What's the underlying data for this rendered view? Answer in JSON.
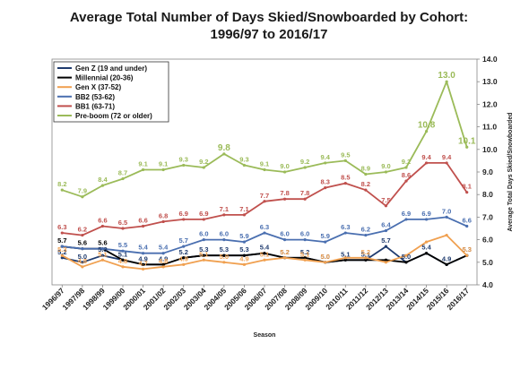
{
  "chart_data": {
    "type": "line",
    "title_lines": [
      "Average Total Number of Days Skied/Snowboarded by Cohort:",
      "1996/97 to 2016/17"
    ],
    "xlabel": "Season",
    "ylabel": "Average Total Days Skied/Snowboarded",
    "ylim": [
      4.0,
      14.0
    ],
    "yticks": [
      "4.0",
      "5.0",
      "6.0",
      "7.0",
      "8.0",
      "9.0",
      "10.0",
      "11.0",
      "12.0",
      "13.0",
      "14.0"
    ],
    "legend_position": "top-left",
    "categories": [
      "1996/97",
      "1997/98",
      "1998/99",
      "1999/00",
      "2000/01",
      "2001/02",
      "2002/03",
      "2003/04",
      "2004/05",
      "2005/06",
      "2006/07",
      "2007/08",
      "2008/09",
      "2009/10",
      "2010/11",
      "2011/12",
      "2012/13",
      "2013/14",
      "2014/15",
      "2015/16",
      "2016/17"
    ],
    "series": [
      {
        "name": "Gen Z (19 and under)",
        "color": "#1f3b6e",
        "values": [
          5.2,
          5.0,
          5.3,
          5.1,
          4.9,
          4.9,
          5.2,
          5.3,
          5.3,
          5.3,
          5.4,
          5.2,
          5.2,
          5.0,
          5.1,
          5.1,
          5.7,
          5.0,
          5.4,
          4.9,
          5.3
        ],
        "labels": [
          "5.2",
          "5.0",
          "5.3",
          "5.1",
          "4.9",
          "4.9",
          "5.2",
          "5.3",
          "5.3",
          "5.3",
          "5.4",
          "5.2",
          "5.2",
          "5.0",
          "5.1",
          "5.1",
          "5.7",
          "5.0",
          "5.4",
          "4.9",
          "5.3"
        ]
      },
      {
        "name": "Millennial (20-36)",
        "color": "#000000",
        "values": [
          5.7,
          5.6,
          5.6,
          5.1,
          4.9,
          4.9,
          5.2,
          5.3,
          5.3,
          5.3,
          5.4,
          5.2,
          5.2,
          5.0,
          5.1,
          5.1,
          5.1,
          5.0,
          5.4,
          4.9,
          5.3
        ],
        "labels": [
          "5.7",
          "5.6",
          "5.6",
          "",
          "",
          "",
          "",
          "",
          "",
          "",
          "",
          "",
          "",
          "",
          "",
          "",
          "",
          "",
          "",
          "",
          ""
        ]
      },
      {
        "name": "Gen X (37-52)",
        "color": "#f0a050",
        "values": [
          5.3,
          4.8,
          5.1,
          4.8,
          4.7,
          4.8,
          4.9,
          5.1,
          5.0,
          4.9,
          5.1,
          5.2,
          5.1,
          5.0,
          5.2,
          5.2,
          5.0,
          5.3,
          5.9,
          6.2,
          5.3
        ],
        "labels": [
          "5.3",
          "4.8",
          "5.1",
          "4.8",
          "4.7",
          "4.8",
          "4.9",
          "5.1",
          "5.0",
          "4.9",
          "5.1",
          "5.2",
          "5.1",
          "5.0",
          "",
          "5.2",
          "",
          "",
          "",
          "",
          "5.3"
        ]
      },
      {
        "name": "BB2 (53-62)",
        "color": "#4a6fb0",
        "values": [
          5.7,
          5.6,
          5.6,
          5.5,
          5.4,
          5.4,
          5.7,
          6.0,
          6.0,
          5.9,
          6.3,
          6.0,
          6.0,
          5.9,
          6.3,
          6.2,
          6.4,
          6.9,
          6.9,
          7.0,
          6.6
        ],
        "labels": [
          "",
          "",
          "",
          "5.5",
          "5.4",
          "5.4",
          "5.7",
          "6.0",
          "6.0",
          "5.9",
          "6.3",
          "6.0",
          "6.0",
          "5.9",
          "6.3",
          "6.2",
          "6.4",
          "6.9",
          "6.9",
          "7.0",
          "6.6"
        ]
      },
      {
        "name": "BB1 (63-71)",
        "color": "#c0504d",
        "values": [
          6.3,
          6.2,
          6.6,
          6.5,
          6.6,
          6.8,
          6.9,
          6.9,
          7.1,
          7.1,
          7.7,
          7.8,
          7.8,
          8.3,
          8.5,
          8.2,
          7.5,
          8.6,
          9.4,
          9.4,
          8.1
        ],
        "labels": [
          "6.3",
          "6.2",
          "6.6",
          "6.5",
          "6.6",
          "6.8",
          "6.9",
          "6.9",
          "7.1",
          "7.1",
          "7.7",
          "7.8",
          "7.8",
          "8.3",
          "8.5",
          "8.2",
          "7.5",
          "8.6",
          "9.4",
          "9.4",
          "8.1"
        ]
      },
      {
        "name": "Pre-boom (72 or older)",
        "color": "#9bbb59",
        "values": [
          8.2,
          7.9,
          8.4,
          8.7,
          9.1,
          9.1,
          9.3,
          9.2,
          9.8,
          9.3,
          9.1,
          9.0,
          9.2,
          9.4,
          9.5,
          8.9,
          9.0,
          9.2,
          10.8,
          13.0,
          10.1
        ],
        "labels": [
          "8.2",
          "7.9",
          "8.4",
          "8.7",
          "9.1",
          "9.1",
          "9.3",
          "9.2",
          "9.8",
          "9.3",
          "9.1",
          "9.0",
          "9.2",
          "9.4",
          "9.5",
          "8.9",
          "9.0",
          "9.2",
          "10.8",
          "13.0",
          "10.1"
        ]
      }
    ]
  }
}
